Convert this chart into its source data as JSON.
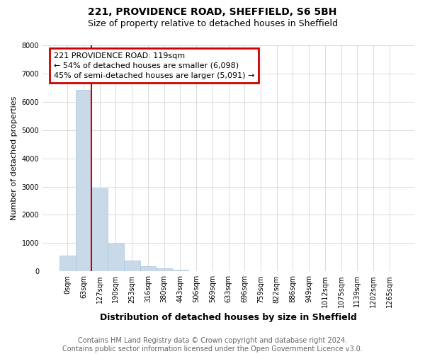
{
  "title1": "221, PROVIDENCE ROAD, SHEFFIELD, S6 5BH",
  "title2": "Size of property relative to detached houses in Sheffield",
  "xlabel": "Distribution of detached houses by size in Sheffield",
  "ylabel": "Number of detached properties",
  "categories": [
    "0sqm",
    "63sqm",
    "127sqm",
    "190sqm",
    "253sqm",
    "316sqm",
    "380sqm",
    "443sqm",
    "506sqm",
    "569sqm",
    "633sqm",
    "696sqm",
    "759sqm",
    "822sqm",
    "886sqm",
    "949sqm",
    "1012sqm",
    "1075sqm",
    "1139sqm",
    "1202sqm",
    "1265sqm"
  ],
  "values": [
    560,
    6420,
    2950,
    990,
    380,
    180,
    120,
    60,
    20,
    0,
    0,
    0,
    0,
    0,
    0,
    0,
    0,
    0,
    0,
    0,
    0
  ],
  "bar_color": "#c8daea",
  "bar_edge_color": "#aac4d8",
  "property_line_color": "#cc0000",
  "annotation_text": "221 PROVIDENCE ROAD: 119sqm\n← 54% of detached houses are smaller (6,098)\n45% of semi-detached houses are larger (5,091) →",
  "annotation_box_color": "#cc0000",
  "ylim": [
    0,
    8000
  ],
  "yticks": [
    0,
    1000,
    2000,
    3000,
    4000,
    5000,
    6000,
    7000,
    8000
  ],
  "footer_text": "Contains HM Land Registry data © Crown copyright and database right 2024.\nContains public sector information licensed under the Open Government Licence v3.0.",
  "bg_color": "#ffffff",
  "plot_bg_color": "#ffffff",
  "grid_color": "#cccccc",
  "title1_fontsize": 10,
  "title2_fontsize": 9,
  "xlabel_fontsize": 9,
  "ylabel_fontsize": 8,
  "tick_fontsize": 7,
  "annotation_fontsize": 8,
  "footer_fontsize": 7
}
